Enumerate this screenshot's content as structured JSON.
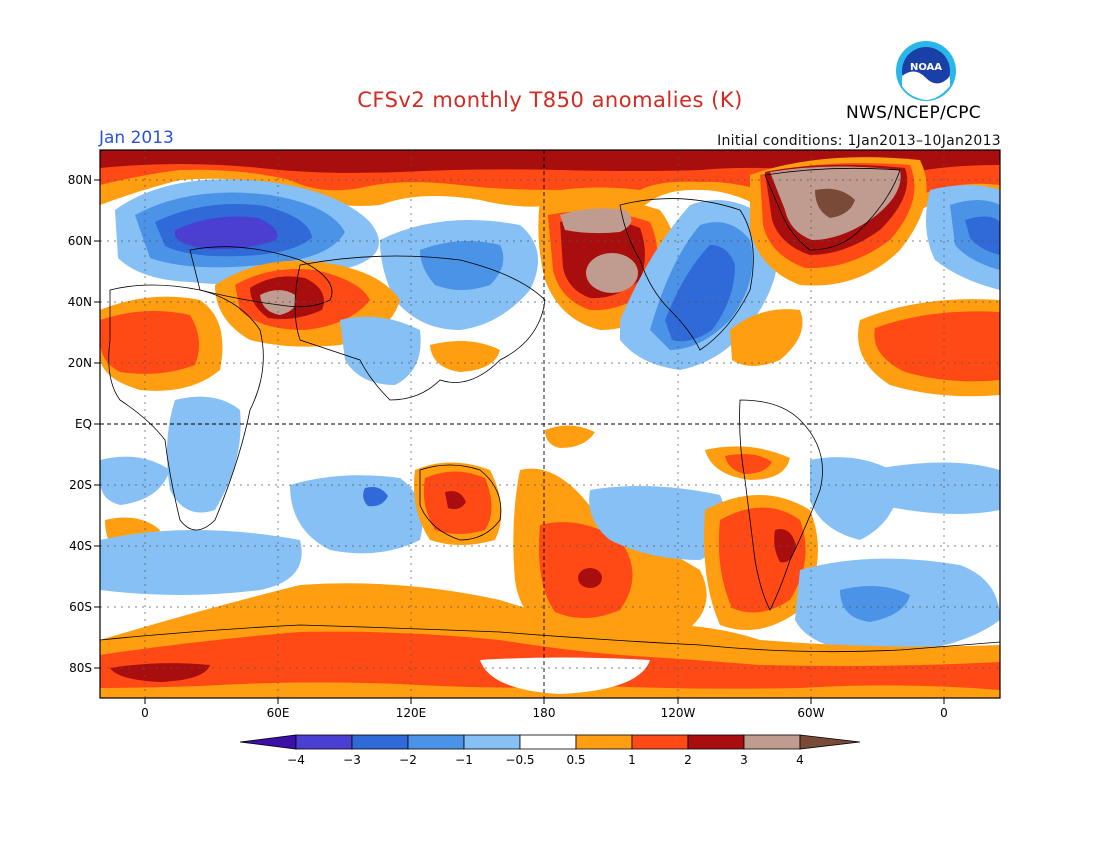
{
  "title": "CFSv2 monthly T850 anomalies (K)",
  "month_label": "Jan 2013",
  "initial_conditions": "Initial conditions: 1Jan2013–10Jan2013",
  "agency": "NWS/NCEP/CPC",
  "logo_text": "NOAA",
  "colors": {
    "title": "#d42a1f",
    "month": "#2b52d8",
    "cold": [
      "#3a10a8",
      "#4a3fd0",
      "#2f6ad8",
      "#4a93e6",
      "#86c0f4"
    ],
    "neutral": "#ffffff",
    "warm": [
      "#ff9e10",
      "#ff4a16",
      "#a80e0e",
      "#c09c90",
      "#7a4a38"
    ]
  },
  "map": {
    "lat_labels": [
      "80N",
      "60N",
      "40N",
      "20N",
      "EQ",
      "20S",
      "40S",
      "60S",
      "80S"
    ],
    "lon_labels": [
      "0",
      "60E",
      "120E",
      "180",
      "120W",
      "60W",
      "0"
    ]
  },
  "colorbar": {
    "levels": [
      "−4",
      "−3",
      "−2",
      "−1",
      "−0.5",
      "0.5",
      "1",
      "2",
      "3",
      "4"
    ]
  }
}
